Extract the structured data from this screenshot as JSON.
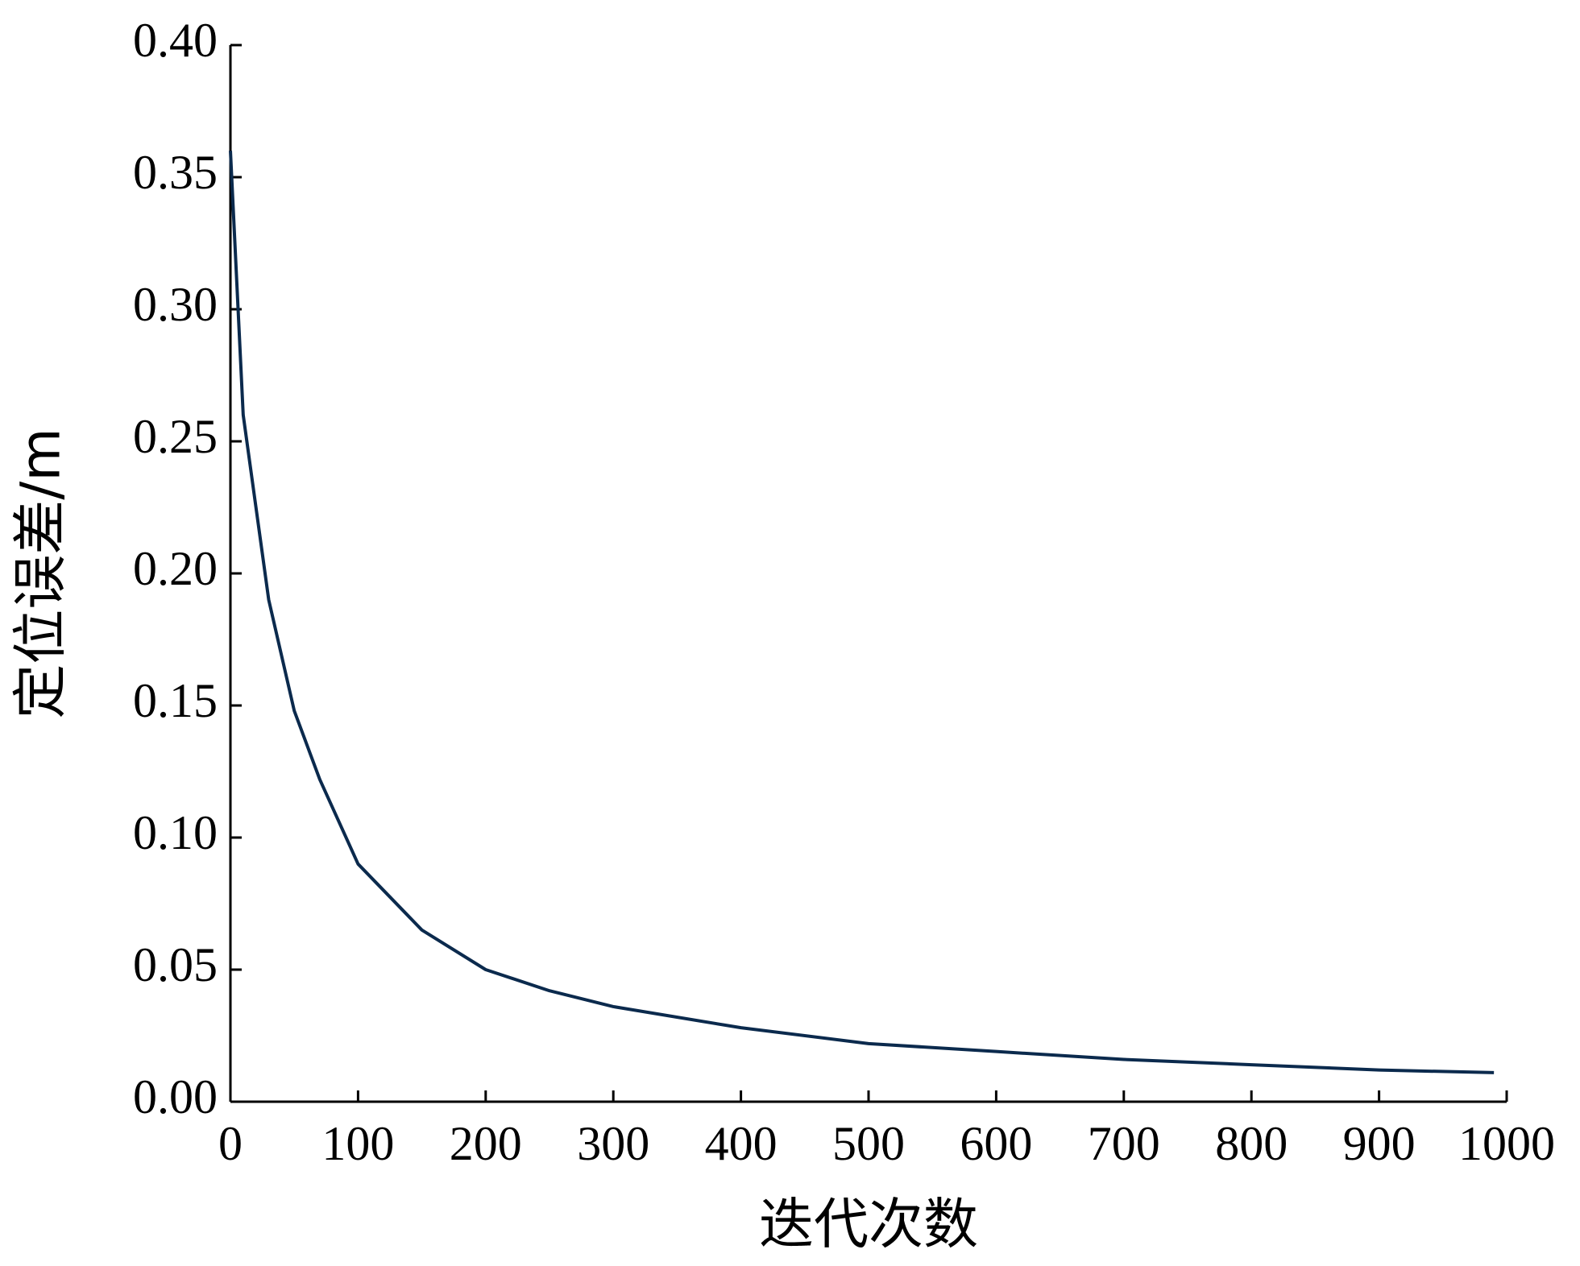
{
  "chart_data": {
    "type": "line",
    "x_label": "迭代次数",
    "y_label": "定位误差/m",
    "x": [
      0,
      5,
      10,
      20,
      30,
      50,
      70,
      100,
      150,
      200,
      250,
      300,
      400,
      500,
      600,
      700,
      800,
      900,
      990
    ],
    "series": [
      {
        "color": "#0b2a4d",
        "values": [
          0.36,
          0.31,
          0.26,
          0.225,
          0.19,
          0.148,
          0.122,
          0.09,
          0.065,
          0.05,
          0.042,
          0.036,
          0.028,
          0.022,
          0.019,
          0.016,
          0.014,
          0.012,
          0.011
        ]
      }
    ],
    "xlim": [
      0,
      1000
    ],
    "xticks": [
      0,
      100,
      200,
      300,
      400,
      500,
      600,
      700,
      800,
      900,
      1000
    ],
    "ylim": [
      0,
      0.4
    ],
    "yticks": [
      {
        "value": 0,
        "label": "0.00"
      },
      {
        "value": 0.05,
        "label": "0.05"
      },
      {
        "value": 0.1,
        "label": "0.10"
      },
      {
        "value": 0.15,
        "label": "0.15"
      },
      {
        "value": 0.2,
        "label": "0.20"
      },
      {
        "value": 0.25,
        "label": "0.25"
      },
      {
        "value": 0.3,
        "label": "0.30"
      },
      {
        "value": 0.35,
        "label": "0.35"
      },
      {
        "value": 0.4,
        "label": "0.40"
      }
    ],
    "grid": false
  }
}
